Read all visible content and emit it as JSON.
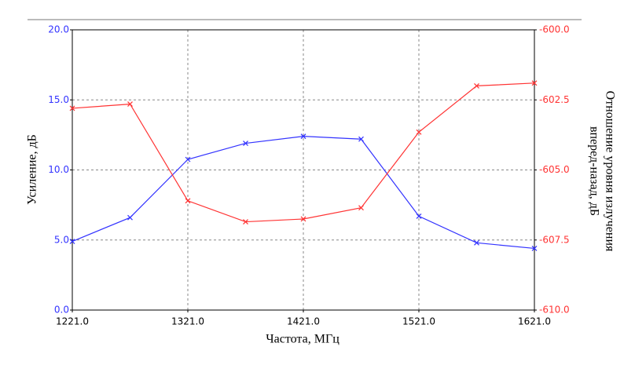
{
  "chart_data": {
    "type": "line",
    "xlabel": "Частота, МГц",
    "ylabel": "Усиление, дБ",
    "y2label": [
      "Отношение уровня излучения",
      "вперед-назад, дБ"
    ],
    "x": [
      1221,
      1271,
      1321,
      1371,
      1421,
      1471,
      1521,
      1571,
      1621
    ],
    "xlim": [
      1221,
      1621
    ],
    "xticks": [
      {
        "value": 1221,
        "label": "1221.0"
      },
      {
        "value": 1321,
        "label": "1321.0"
      },
      {
        "value": 1421,
        "label": "1421.0"
      },
      {
        "value": 1521,
        "label": "1521.0"
      },
      {
        "value": 1621,
        "label": "1621.0"
      }
    ],
    "ylim": [
      0,
      20
    ],
    "yticks": [
      {
        "value": 0,
        "label": "0.0"
      },
      {
        "value": 5,
        "label": "5.0"
      },
      {
        "value": 10,
        "label": "10.0"
      },
      {
        "value": 15,
        "label": "15.0"
      },
      {
        "value": 20,
        "label": "20.0"
      }
    ],
    "y2lim": [
      -610,
      -600
    ],
    "y2ticks": [
      {
        "value": -610,
        "label": "-610.0"
      },
      {
        "value": -607.5,
        "label": "-607.5"
      },
      {
        "value": -605,
        "label": "-605.0"
      },
      {
        "value": -602.5,
        "label": "-602.5"
      },
      {
        "value": -600,
        "label": "-600.0"
      }
    ],
    "grid": true,
    "series": [
      {
        "name": "Усиление",
        "color": "#3333ff",
        "axis": "y",
        "values": [
          4.9,
          6.6,
          10.75,
          11.9,
          12.4,
          12.2,
          6.7,
          4.8,
          4.4
        ]
      },
      {
        "name": "Отношение вперед-назад",
        "color": "#ff3333",
        "axis": "y2",
        "values": [
          -602.8,
          -602.65,
          -606.1,
          -606.85,
          -606.75,
          -606.35,
          -603.65,
          -602.0,
          -601.9
        ]
      }
    ]
  }
}
